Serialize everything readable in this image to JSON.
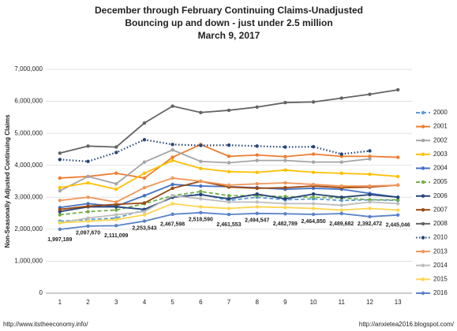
{
  "chart_data": {
    "type": "line",
    "title": "December through February Continuing Claims-Unadjusted",
    "subtitle": "Bouncing up and down - just under 2.5 million",
    "date": "March 9, 2017",
    "y_label": "Non-Seasonally Adjusted Continuing Claims",
    "footer_left": "http://www.itstheeconomy.info/",
    "footer_right": "http://anxietea2016.blogspot.com/",
    "categories": [
      "1",
      "2",
      "3",
      "4",
      "5",
      "6",
      "7",
      "8",
      "9",
      "10",
      "11",
      "12",
      "13"
    ],
    "ylim": [
      0,
      7000000
    ],
    "yticks": [
      0,
      {
        "value": 1000000,
        "label": "1,000,000"
      },
      {
        "value": 2000000,
        "label": "2,000,000"
      },
      {
        "value": 3000000,
        "label": "3,000,000"
      },
      {
        "value": 4000000,
        "label": "4,000,000"
      },
      {
        "value": 5000000,
        "label": "5,000,000"
      },
      {
        "value": 6000000,
        "label": "6,000,000"
      },
      {
        "value": 7000000,
        "label": "7,000,000"
      }
    ],
    "grid": true,
    "legend": "right",
    "series": [
      {
        "name": "2000",
        "color": "#5b9bd5",
        "style": "dashed",
        "values": [
          2250000,
          2300000,
          2350000,
          2600000,
          3000000,
          3100000,
          2900000,
          3000000,
          2920000,
          2950000,
          2900000,
          2920000,
          2900000
        ]
      },
      {
        "name": "2001",
        "color": "#ed7d31",
        "style": "solid",
        "values": [
          3600000,
          3650000,
          3750000,
          3600000,
          4250000,
          4650000,
          4280000,
          4320000,
          4270000,
          4350000,
          4280000,
          4280000,
          4250000
        ]
      },
      {
        "name": "2002",
        "color": "#a5a5a5",
        "style": "solid",
        "values": [
          3200000,
          3650000,
          3420000,
          4100000,
          4480000,
          4120000,
          4080000,
          4150000,
          4150000,
          4100000,
          4100000,
          4200000,
          null
        ]
      },
      {
        "name": "2003",
        "color": "#ffc000",
        "style": "solid",
        "values": [
          3300000,
          3450000,
          3250000,
          3750000,
          4150000,
          3900000,
          3800000,
          3780000,
          3850000,
          3780000,
          3750000,
          3720000,
          3650000
        ]
      },
      {
        "name": "2004",
        "color": "#4472c4",
        "style": "solid",
        "values": [
          2680000,
          2800000,
          2720000,
          3050000,
          3400000,
          3350000,
          3330000,
          3300000,
          3250000,
          3280000,
          3250000,
          3120000,
          3000000
        ]
      },
      {
        "name": "2005",
        "color": "#70ad47",
        "style": "dashed",
        "values": [
          2450000,
          2550000,
          2600000,
          2800000,
          3050000,
          3180000,
          3050000,
          3050000,
          3020000,
          3000000,
          2980000,
          2920000,
          2920000
        ]
      },
      {
        "name": "2006",
        "color": "#264478",
        "style": "solid",
        "values": [
          2550000,
          2700000,
          2700000,
          2620000,
          3000000,
          3080000,
          2950000,
          3100000,
          2950000,
          3100000,
          3000000,
          3080000,
          3000000
        ]
      },
      {
        "name": "2007",
        "color": "#9e480e",
        "style": "solid",
        "values": [
          2620000,
          2720000,
          2780000,
          2820000,
          3280000,
          3500000,
          3320000,
          3280000,
          3300000,
          3350000,
          3300000,
          3320000,
          3380000
        ]
      },
      {
        "name": "2008",
        "color": "#636363",
        "style": "solid",
        "values": [
          4380000,
          4600000,
          4570000,
          5320000,
          5850000,
          5650000,
          5720000,
          5820000,
          5960000,
          5980000,
          6100000,
          6220000,
          6360000
        ]
      },
      {
        "name": "2010",
        "color": "#264478",
        "style": "dotted",
        "values": [
          4180000,
          4120000,
          4400000,
          4800000,
          4650000,
          4620000,
          4630000,
          4600000,
          4570000,
          4580000,
          4350000,
          4450000,
          null
        ]
      },
      {
        "name": "2013",
        "color": "#f1975a",
        "style": "solid",
        "values": [
          2900000,
          3000000,
          2850000,
          3300000,
          3600000,
          3500000,
          3380000,
          3420000,
          3450000,
          3400000,
          3350000,
          3350000,
          3380000
        ]
      },
      {
        "name": "2014",
        "color": "#bdbdbd",
        "style": "solid",
        "values": [
          2200000,
          2350000,
          2450000,
          2550000,
          3050000,
          2950000,
          2850000,
          2850000,
          2800000,
          2800000,
          2750000,
          2850000,
          2800000
        ]
      },
      {
        "name": "2015",
        "color": "#ffd54f",
        "style": "solid",
        "values": [
          2200000,
          2250000,
          2300000,
          2450000,
          2800000,
          2700000,
          2650000,
          2700000,
          2680000,
          2650000,
          2600000,
          2650000,
          2600000
        ]
      },
      {
        "name": "2016",
        "color": "#5a82c8",
        "style": "solid",
        "values": [
          1997189,
          2097670,
          2111099,
          2253543,
          2467598,
          2518590,
          2461553,
          2494547,
          2482789,
          2464850,
          2489682,
          2392472,
          2445046
        ],
        "value_labels": [
          "1,997,189",
          "2,097,670",
          "2,111,099",
          "2,253,543",
          "2,467,598",
          "2,518,590",
          "2,461,553",
          "2,494,547",
          "2,482,789",
          "2,464,850",
          "2,489,682",
          "2,392,472",
          "2,445,046"
        ]
      }
    ]
  }
}
